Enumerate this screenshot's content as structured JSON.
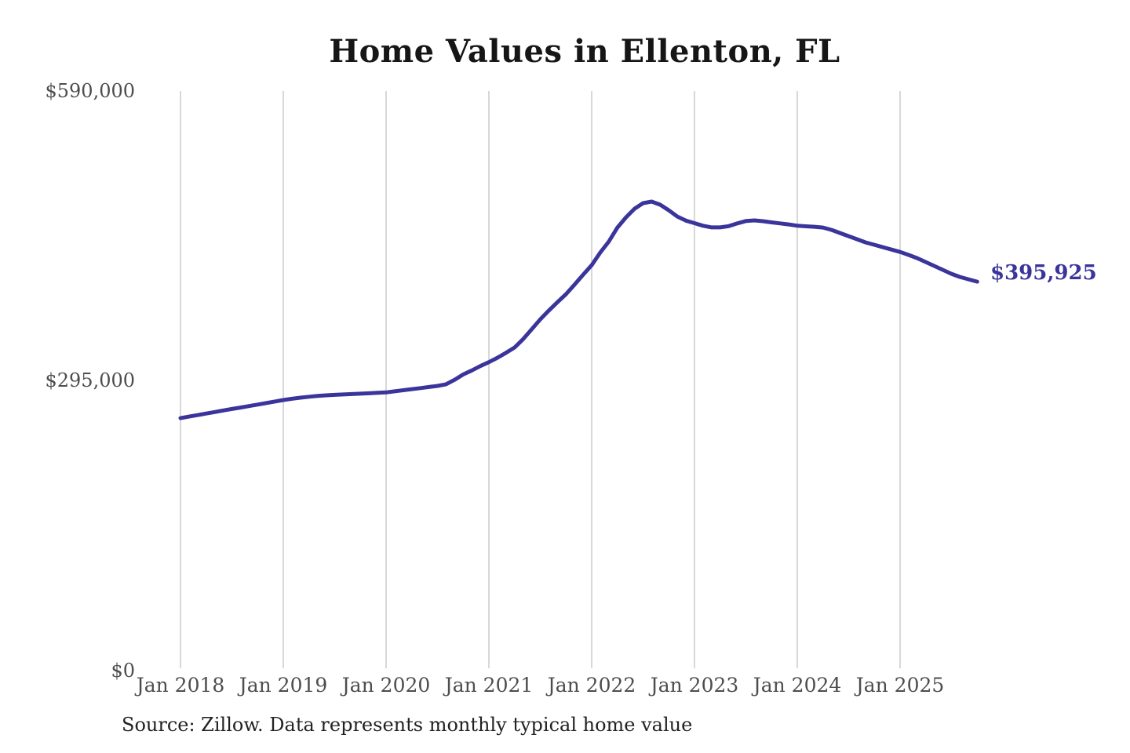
{
  "page": {
    "background_color": "#ffffff"
  },
  "chart_data": {
    "type": "line",
    "title": "Home Values in Ellenton, FL",
    "source_note": "Source: Zillow. Data represents monthly typical home value",
    "series_name": "Monthly typical home value",
    "frequency": "monthly",
    "x_start": "Jan 2018",
    "x_end": "Oct 2025",
    "xlabel": "",
    "ylabel": "",
    "ylim": [
      0,
      590000
    ],
    "grid": "vertical-only",
    "legend": "none",
    "line_color": "#3a349b",
    "gridline_color": "#cbcbcb",
    "label_color": "#4d4d4d",
    "latest_value": 395925,
    "end_label": "$395,925",
    "values": [
      257000,
      258600,
      260100,
      261700,
      263200,
      264800,
      266300,
      267800,
      269300,
      270800,
      272300,
      273900,
      275400,
      276700,
      277800,
      278800,
      279600,
      280200,
      280700,
      281100,
      281500,
      281900,
      282300,
      282800,
      283200,
      284300,
      285400,
      286500,
      287600,
      288700,
      289800,
      291500,
      296000,
      301500,
      305500,
      310000,
      314000,
      318500,
      323500,
      328900,
      337500,
      347500,
      357600,
      366500,
      375000,
      383200,
      393000,
      403000,
      412700,
      425500,
      436700,
      451000,
      461400,
      470200,
      475800,
      477400,
      474200,
      468600,
      462200,
      458000,
      455500,
      452800,
      451200,
      451200,
      452400,
      455200,
      457600,
      458300,
      457500,
      456300,
      455200,
      454200,
      452800,
      452300,
      451800,
      451000,
      448600,
      445400,
      442200,
      439000,
      435800,
      433400,
      431000,
      428600,
      426200,
      423100,
      419900,
      415900,
      411900,
      407900,
      403900,
      400700,
      398300,
      395925
    ],
    "y_ticks": [
      {
        "label": "$0",
        "value": 0
      },
      {
        "label": "$295,000",
        "value": 295000
      },
      {
        "label": "$590,000",
        "value": 590000
      }
    ],
    "x_ticks": [
      {
        "label": "Jan 2018",
        "month_index": 0
      },
      {
        "label": "Jan 2019",
        "month_index": 12
      },
      {
        "label": "Jan 2020",
        "month_index": 24
      },
      {
        "label": "Jan 2021",
        "month_index": 36
      },
      {
        "label": "Jan 2022",
        "month_index": 48
      },
      {
        "label": "Jan 2023",
        "month_index": 60
      },
      {
        "label": "Jan 2024",
        "month_index": 72
      },
      {
        "label": "Jan 2025",
        "month_index": 84
      }
    ]
  }
}
